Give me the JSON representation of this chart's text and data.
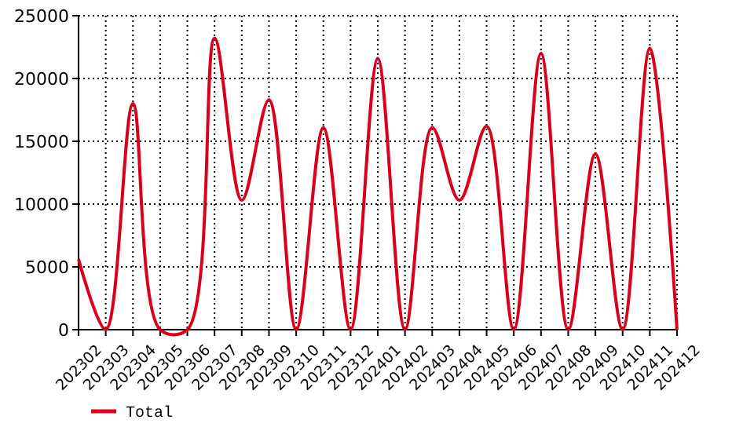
{
  "chart_data": {
    "type": "line",
    "categories": [
      "202302",
      "202303",
      "202304",
      "202305",
      "202306",
      "202307",
      "202308",
      "202309",
      "202310",
      "202311",
      "202312",
      "202401",
      "202402",
      "202403",
      "202404",
      "202405",
      "202406",
      "202407",
      "202408",
      "202409",
      "202410",
      "202411",
      "202412"
    ],
    "series": [
      {
        "name": "Total",
        "color": "#d9001b",
        "values": [
          5600,
          0,
          18000,
          0,
          0,
          23200,
          10300,
          18300,
          0,
          16100,
          0,
          21600,
          0,
          16100,
          10300,
          16200,
          0,
          22000,
          0,
          14000,
          0,
          22400,
          0
        ]
      }
    ],
    "ylim": [
      0,
      25000
    ],
    "yticks": [
      0,
      5000,
      10000,
      15000,
      20000,
      25000
    ],
    "grid": true,
    "legend": "bottom left",
    "marker": "none",
    "line_style": "solid"
  }
}
